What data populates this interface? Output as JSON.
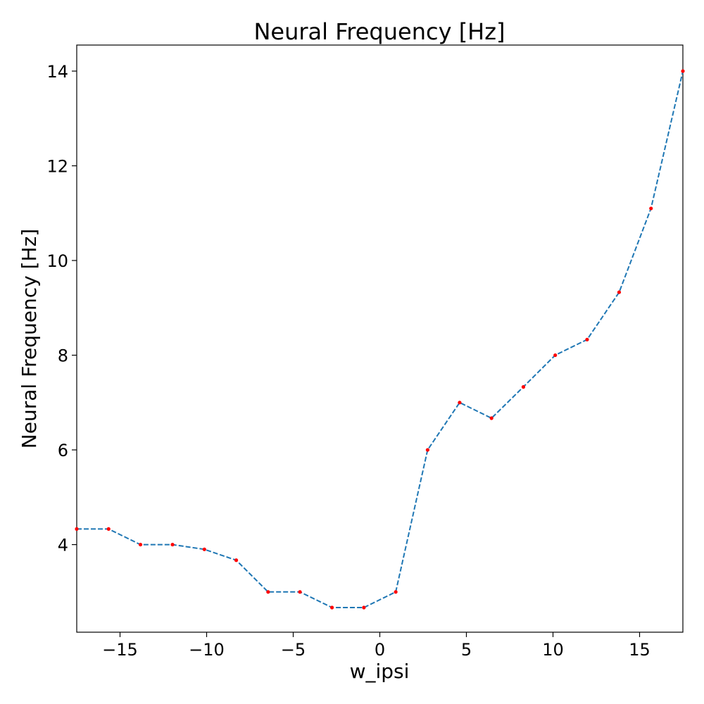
{
  "chart_data": {
    "type": "line",
    "title": "Neural Frequency [Hz]",
    "xlabel": "w_ipsi",
    "ylabel": "Neural Frequency [Hz]",
    "xlim": [
      -17.5,
      17.5
    ],
    "ylim": [
      2.15,
      14.55
    ],
    "x_ticks": [
      -15,
      -10,
      -5,
      0,
      5,
      10,
      15
    ],
    "x_tick_labels": [
      "−15",
      "−10",
      "−5",
      "0",
      "5",
      "10",
      "15"
    ],
    "y_ticks": [
      4,
      6,
      8,
      10,
      12,
      14
    ],
    "y_tick_labels": [
      "4",
      "6",
      "8",
      "10",
      "12",
      "14"
    ],
    "grid": false,
    "line_style": "dashed",
    "line_color": "#1f77b4",
    "marker_color": "#ff0000",
    "series": [
      {
        "x": [
          -17.5,
          -15.66,
          -13.82,
          -11.97,
          -10.13,
          -8.29,
          -6.45,
          -4.61,
          -2.76,
          -0.92,
          0.92,
          2.76,
          4.61,
          6.45,
          8.29,
          10.13,
          11.97,
          13.82,
          15.66,
          17.5
        ],
        "values": [
          4.33,
          4.33,
          4.0,
          4.0,
          3.9,
          3.67,
          3.0,
          3.0,
          2.67,
          2.67,
          3.0,
          6.0,
          7.0,
          6.67,
          7.33,
          8.0,
          8.33,
          9.33,
          11.1,
          14.0
        ]
      }
    ]
  }
}
